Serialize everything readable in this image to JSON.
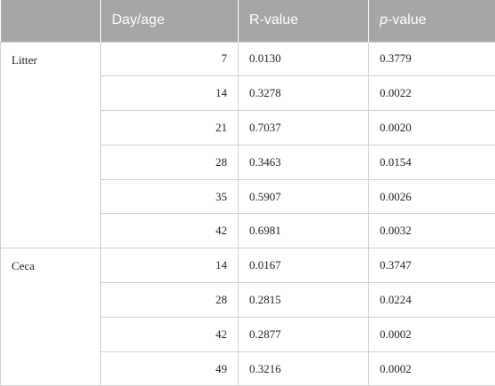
{
  "table": {
    "header": [
      "Day/age",
      "R-value",
      "p-value"
    ],
    "groups": [
      {
        "label": "Litter",
        "rows": [
          [
            "7",
            "0.0130",
            "0.3779"
          ],
          [
            "14",
            "0.3278",
            "0.0022"
          ],
          [
            "21",
            "0.7037",
            "0.0020"
          ],
          [
            "28",
            "0.3463",
            "0.0154"
          ],
          [
            "35",
            "0.5907",
            "0.0026"
          ],
          [
            "42",
            "0.6981",
            "0.0032"
          ]
        ]
      },
      {
        "label": "Ceca",
        "rows": [
          [
            "14",
            "0.0167",
            "0.3747"
          ],
          [
            "28",
            "0.2815",
            "0.0224"
          ],
          [
            "42",
            "0.2877",
            "0.0002"
          ],
          [
            "49",
            "0.3216",
            "0.0002"
          ]
        ]
      }
    ]
  }
}
